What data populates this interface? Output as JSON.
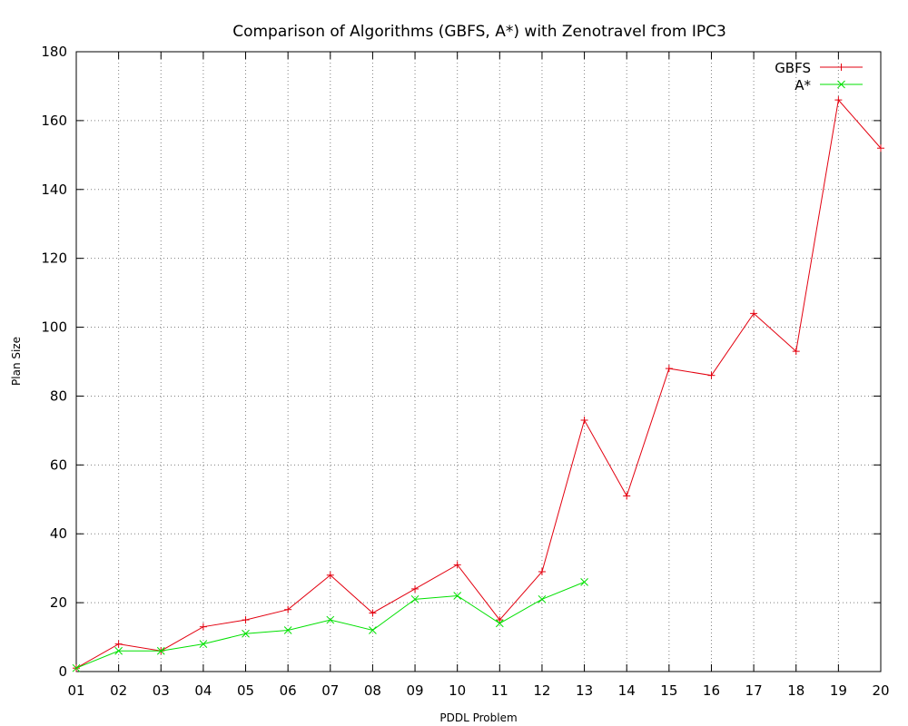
{
  "chart_data": {
    "type": "line",
    "title": "Comparison of Algorithms (GBFS, A*) with Zenotravel from IPC3",
    "xlabel": "PDDL Problem",
    "ylabel": "Plan Size",
    "categories": [
      "01",
      "02",
      "03",
      "04",
      "05",
      "06",
      "07",
      "08",
      "09",
      "10",
      "11",
      "12",
      "13",
      "14",
      "15",
      "16",
      "17",
      "18",
      "19",
      "20"
    ],
    "ylim": [
      0,
      180
    ],
    "yticks": [
      "0",
      "20",
      "40",
      "60",
      "80",
      "100",
      "120",
      "140",
      "160",
      "180"
    ],
    "grid": true,
    "legend_position": "top-right",
    "series": [
      {
        "name": "GBFS",
        "color": "#e3000f",
        "marker": "plus",
        "values": [
          1,
          8,
          6,
          13,
          15,
          18,
          28,
          17,
          24,
          31,
          15,
          29,
          73,
          51,
          88,
          86,
          104,
          93,
          166,
          152
        ]
      },
      {
        "name": "A*",
        "color": "#00e000",
        "marker": "cross",
        "values": [
          1,
          6,
          6,
          8,
          11,
          12,
          15,
          12,
          21,
          22,
          14,
          21,
          26,
          null,
          null,
          null,
          null,
          null,
          null,
          null
        ]
      }
    ]
  }
}
